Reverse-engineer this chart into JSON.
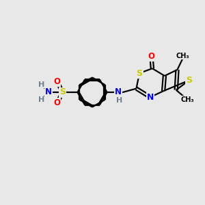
{
  "bg": "#e8e8e8",
  "bond_color": "#000000",
  "S_color": "#cccc00",
  "N_color": "#0000ff",
  "O_color": "#ff0000",
  "C_color": "#000000",
  "H_color": "#708090",
  "figsize": [
    3.0,
    3.0
  ],
  "dpi": 100,
  "xlim": [
    0,
    10
  ],
  "ylim": [
    0,
    10
  ]
}
